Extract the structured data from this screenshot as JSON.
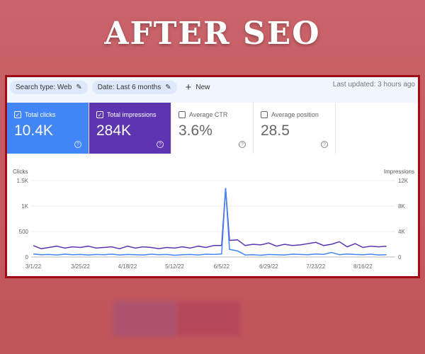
{
  "banner": {
    "title": "AFTER SEO"
  },
  "toolbar": {
    "search_type": "Search type: Web",
    "date": "Date: Last 6 months",
    "new_label": "New",
    "last_updated": "Last updated: 3 hours ago"
  },
  "cards": [
    {
      "label": "Total clicks",
      "value": "10.4K",
      "checked": true
    },
    {
      "label": "Total impressions",
      "value": "284K",
      "checked": true
    },
    {
      "label": "Average CTR",
      "value": "3.6%",
      "checked": false
    },
    {
      "label": "Average position",
      "value": "28.5",
      "checked": false
    }
  ],
  "colors": {
    "clicks": "#4285f4",
    "impressions": "#5e35b1",
    "border": "#a00c14"
  },
  "chart_data": {
    "type": "line",
    "ylabel_left": "Clicks",
    "ylabel_right": "Impressions",
    "ylim_left": [
      0,
      1500
    ],
    "ylim_right": [
      0,
      12000
    ],
    "yticks_left": [
      "0",
      "500",
      "1K",
      "1.5K"
    ],
    "yticks_right": [
      "0",
      "4K",
      "8K",
      "12K"
    ],
    "xticks": [
      "3/1/22",
      "3/25/22",
      "4/18/22",
      "5/12/22",
      "6/5/22",
      "6/29/22",
      "7/23/22",
      "8/16/22"
    ],
    "grid": true,
    "x": [
      "3/1/22",
      "3/5/22",
      "3/9/22",
      "3/13/22",
      "3/17/22",
      "3/21/22",
      "3/25/22",
      "3/29/22",
      "4/2/22",
      "4/6/22",
      "4/10/22",
      "4/14/22",
      "4/18/22",
      "4/22/22",
      "4/26/22",
      "4/30/22",
      "5/4/22",
      "5/8/22",
      "5/12/22",
      "5/16/22",
      "5/20/22",
      "5/24/22",
      "5/28/22",
      "6/1/22",
      "6/5/22",
      "6/7/22",
      "6/9/22",
      "6/13/22",
      "6/17/22",
      "6/21/22",
      "6/25/22",
      "6/29/22",
      "7/3/22",
      "7/7/22",
      "7/11/22",
      "7/15/22",
      "7/19/22",
      "7/23/22",
      "7/27/22",
      "7/31/22",
      "8/4/22",
      "8/8/22",
      "8/12/22",
      "8/16/22",
      "8/20/22",
      "8/24/22",
      "8/28/22"
    ],
    "series": [
      {
        "name": "Clicks",
        "axis": "left",
        "values": [
          60,
          45,
          50,
          40,
          55,
          45,
          50,
          40,
          50,
          45,
          55,
          40,
          50,
          45,
          40,
          55,
          45,
          50,
          35,
          45,
          50,
          40,
          55,
          50,
          60,
          1350,
          150,
          120,
          40,
          45,
          35,
          50,
          45,
          40,
          55,
          50,
          45,
          60,
          50,
          90,
          45,
          60,
          50,
          45,
          55,
          40,
          45
        ]
      },
      {
        "name": "Impressions",
        "axis": "right",
        "values": [
          1800,
          1300,
          1500,
          1700,
          1400,
          1600,
          1500,
          1700,
          1400,
          1500,
          1600,
          1300,
          1700,
          1400,
          1600,
          1500,
          1300,
          1500,
          1400,
          1600,
          1400,
          1700,
          1500,
          1800,
          1800,
          10800,
          2600,
          2700,
          1800,
          2000,
          1900,
          2200,
          1700,
          2000,
          1800,
          1900,
          2100,
          2300,
          1800,
          2000,
          2400,
          1600,
          2100,
          1500,
          1700,
          1600,
          1700
        ]
      }
    ]
  }
}
